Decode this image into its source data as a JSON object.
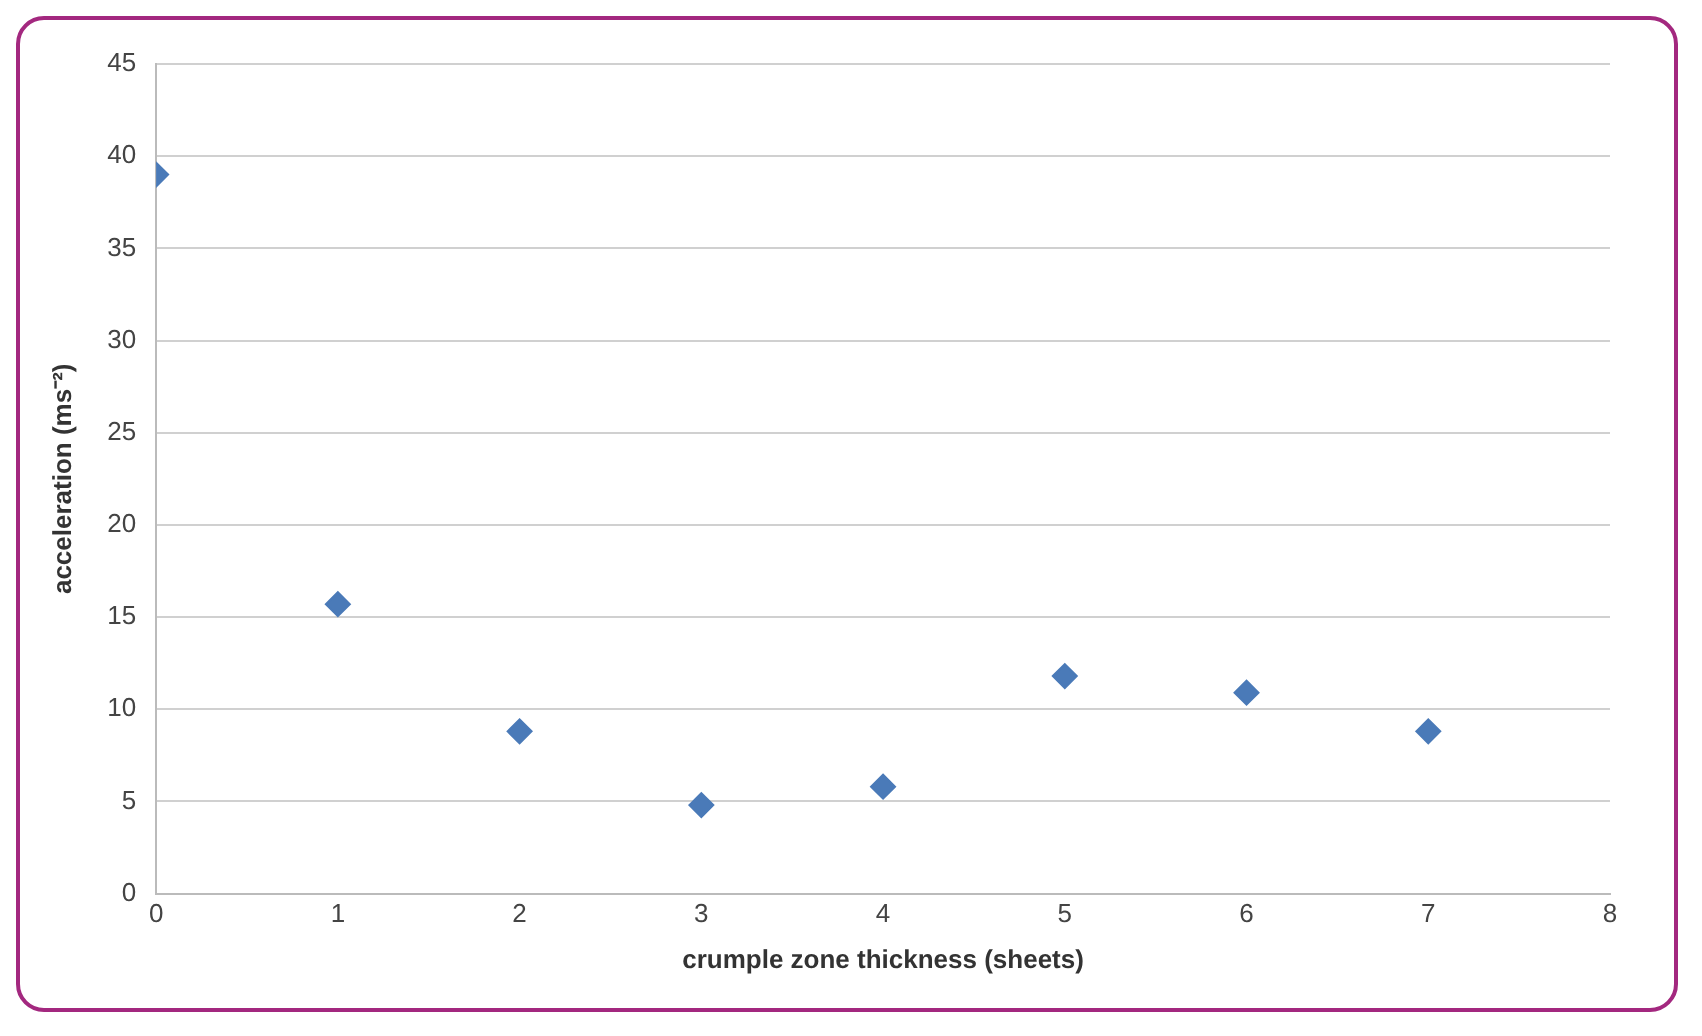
{
  "chart_data": {
    "type": "scatter",
    "xlabel": "crumple zone thickness (sheets)",
    "ylabel": "acceleration (ms⁻²)",
    "x": [
      0,
      1,
      2,
      3,
      4,
      5,
      6,
      7
    ],
    "series": [
      {
        "color": "#4a7ab8",
        "values": [
          39,
          15.7,
          8.8,
          4.8,
          5.8,
          11.8,
          10.9,
          8.8
        ]
      }
    ],
    "xlim": [
      0,
      8
    ],
    "xticks": [
      0,
      1,
      2,
      3,
      4,
      5,
      6,
      7,
      8
    ],
    "ylim": [
      0,
      45
    ],
    "yticks": [
      0,
      5,
      10,
      15,
      20,
      25,
      30,
      35,
      40,
      45
    ],
    "grid": "y",
    "legend": false,
    "marker": "diamond"
  }
}
